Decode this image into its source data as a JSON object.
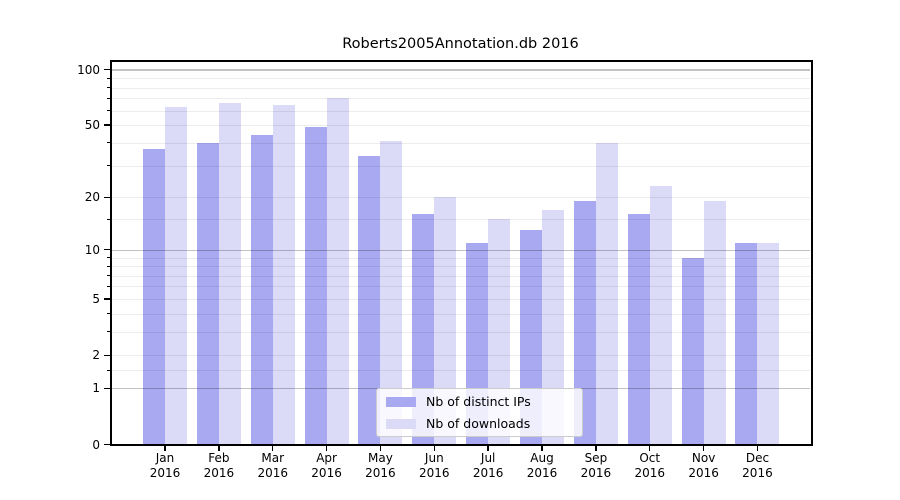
{
  "figure": {
    "title": "Roberts2005Annotation.db 2016",
    "background": "#ffffff"
  },
  "chart_data": {
    "type": "bar",
    "title": "Roberts2005Annotation.db 2016",
    "categories": [
      "Jan 2016",
      "Feb 2016",
      "Mar 2016",
      "Apr 2016",
      "May 2016",
      "Jun 2016",
      "Jul 2016",
      "Aug 2016",
      "Sep 2016",
      "Oct 2016",
      "Nov 2016",
      "Dec 2016"
    ],
    "series": [
      {
        "name": "Nb of distinct IPs",
        "color": "#a9a9f1",
        "values": [
          37,
          40,
          44,
          49,
          34,
          16,
          11,
          13,
          19,
          16,
          9,
          11
        ]
      },
      {
        "name": "Nb of downloads",
        "color": "#dbdbf8",
        "values": [
          63,
          66,
          64,
          70,
          41,
          20,
          15,
          17,
          40,
          23,
          19,
          11
        ]
      }
    ],
    "xlabel": "",
    "ylabel": "",
    "y_axis": {
      "scale": "log10(1+x)",
      "tick_values": [
        100,
        50,
        20,
        10,
        5,
        2,
        1,
        0
      ],
      "tick_labels": [
        "100",
        "50",
        "20",
        "10",
        "5",
        "2",
        "1",
        "0"
      ],
      "major_gridline_values": [
        1,
        10,
        100
      ],
      "minor_gridline_values": [
        1.5,
        2,
        3,
        4,
        5,
        6,
        7,
        8,
        9,
        15,
        20,
        30,
        40,
        50,
        60,
        70,
        80,
        90
      ],
      "ylim": [
        0,
        113
      ]
    },
    "legend": {
      "entries": [
        "Nb of distinct IPs",
        "Nb of downloads"
      ],
      "position": "lower-center-inside"
    },
    "grid": true
  },
  "colors": {
    "bar_ips": "#a9a9f1",
    "bar_downloads": "#dbdbf8",
    "grid_major": "#c2c2c2",
    "grid_minor": "#ebebeb",
    "spine": "#000000",
    "text": "#000000",
    "legend_border": "#cccccc",
    "legend_background": "rgba(255,255,255,0.8)"
  }
}
